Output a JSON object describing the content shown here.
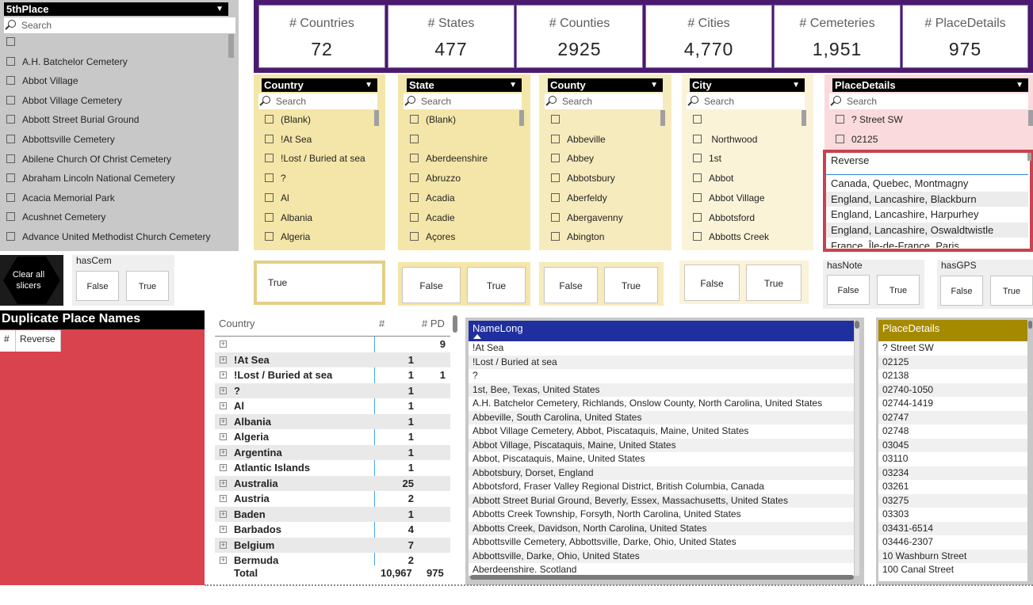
{
  "fifth_place": {
    "title": "5thPlace",
    "search_placeholder": "Search",
    "items": [
      "",
      "A.H. Batchelor Cemetery",
      "Abbot Village",
      "Abbot Village Cemetery",
      "Abbott Street Burial Ground",
      "Abbottsville Cemetery",
      "Abilene Church Of Christ Cemetery",
      "Abraham Lincoln National Cemetery",
      "Acacia Memorial Park",
      "Acushnet Cemetery",
      "Advance United Methodist Church Cemetery"
    ]
  },
  "kpis": [
    {
      "label": "# Countries",
      "value": "72"
    },
    {
      "label": "# States",
      "value": "477"
    },
    {
      "label": "# Counties",
      "value": "2925"
    },
    {
      "label": "# Cities",
      "value": "4,770"
    },
    {
      "label": "# Cemeteries",
      "value": "1,951"
    },
    {
      "label": "# PlaceDetails",
      "value": "975"
    }
  ],
  "slicers": {
    "country": {
      "title": "Country",
      "search": "Search",
      "items": [
        "(Blank)",
        "!At Sea",
        "!Lost / Buried at sea",
        "?",
        "Al",
        "Albania",
        "Algeria"
      ]
    },
    "state": {
      "title": "State",
      "search": "Search",
      "items": [
        "(Blank)",
        "",
        "Aberdeenshire",
        "Abruzzo",
        "Acadia",
        "Acadie",
        "Açores"
      ]
    },
    "county": {
      "title": "County",
      "search": "Search",
      "items": [
        "",
        "Abbeville",
        "Abbey",
        "Abbotsbury",
        "Aberfeldy",
        "Abergavenny",
        "Abington"
      ]
    },
    "city": {
      "title": "City",
      "search": "Search",
      "items": [
        "",
        " Northwood",
        "1st",
        "Abbot",
        "Abbot Village",
        "Abbotsford",
        "Abbotts Creek"
      ]
    },
    "placedetails": {
      "title": "PlaceDetails",
      "search": "Search",
      "items": [
        "? Street SW",
        "02125"
      ]
    }
  },
  "reverse_list": {
    "header": "Reverse",
    "items": [
      "Canada, Quebec, Montmagny",
      "England, Lancashire, Blackburn",
      "England, Lancashire, Harpurhey",
      "England, Lancashire, Oswaldtwistle",
      "France, Île-de-France, Paris"
    ]
  },
  "clear_all": {
    "label": "Clear all slicers"
  },
  "hascem": {
    "title": "hasCem",
    "false": "False",
    "true": "True"
  },
  "hasnote": {
    "title": "hasNote",
    "false": "False",
    "true": "True"
  },
  "hasgps": {
    "title": "hasGPS",
    "false": "False",
    "true": "True"
  },
  "toggles": {
    "country": {
      "true": "True"
    },
    "state": {
      "false": "False",
      "true": "True"
    },
    "county": {
      "false": "False",
      "true": "True"
    },
    "city": {
      "false": "False",
      "true": "True"
    }
  },
  "duplicates": {
    "title": "Duplicate Place Names",
    "col1": "#",
    "col2": "Reverse"
  },
  "matrix": {
    "headers": {
      "country": "Country",
      "count": "#",
      "pd": "# PD"
    },
    "rows": [
      {
        "name": "",
        "count": "",
        "pd": "9"
      },
      {
        "name": "!At Sea",
        "count": "1",
        "pd": ""
      },
      {
        "name": "!Lost / Buried at sea",
        "count": "1",
        "pd": "1"
      },
      {
        "name": "?",
        "count": "1",
        "pd": ""
      },
      {
        "name": "Al",
        "count": "1",
        "pd": ""
      },
      {
        "name": "Albania",
        "count": "1",
        "pd": ""
      },
      {
        "name": "Algeria",
        "count": "1",
        "pd": ""
      },
      {
        "name": "Argentina",
        "count": "1",
        "pd": ""
      },
      {
        "name": "Atlantic Islands",
        "count": "1",
        "pd": ""
      },
      {
        "name": "Australia",
        "count": "25",
        "pd": ""
      },
      {
        "name": "Austria",
        "count": "2",
        "pd": ""
      },
      {
        "name": "Baden",
        "count": "1",
        "pd": ""
      },
      {
        "name": "Barbados",
        "count": "4",
        "pd": ""
      },
      {
        "name": "Belgium",
        "count": "7",
        "pd": ""
      },
      {
        "name": "Bermuda",
        "count": "2",
        "pd": ""
      }
    ],
    "total": {
      "label": "Total",
      "count": "10,967",
      "pd": "975"
    }
  },
  "namelong": {
    "header": "NameLong",
    "rows": [
      "!At Sea",
      "!Lost / Buried at sea",
      "?",
      "1st, Bee, Texas, United States",
      "A.H. Batchelor Cemetery, Richlands, Onslow County, North Carolina, United States",
      "Abbeville, South Carolina, United States",
      "Abbot Village Cemetery, Abbot, Piscataquis, Maine, United States",
      "Abbot Village, Piscataquis, Maine, United States",
      "Abbot, Piscataquis, Maine, United States",
      "Abbotsbury, Dorset, England",
      "Abbotsford, Fraser Valley Regional District, British Columbia, Canada",
      "Abbott Street Burial Ground, Beverly, Essex, Massachusetts, United States",
      "Abbotts Creek Township, Forsyth, North Carolina, United States",
      "Abbotts Creek, Davidson, North Carolina, United States",
      "Abbottsville Cemetery, Abbottsville, Darke, Ohio, United States",
      "Abbottsville, Darke, Ohio, United States",
      "Aberdeenshire, Scotland"
    ]
  },
  "placedetails_table": {
    "header": "PlaceDetails",
    "rows": [
      "? Street SW",
      "02125",
      "02138",
      "02740-1050",
      "02744-1419",
      "02747",
      "02748",
      "03045",
      "03110",
      "03234",
      "03261",
      "03275",
      "03303",
      "03431-6514",
      "03446-2307",
      "10 Washburn Street",
      "100 Canal Street"
    ]
  },
  "colors": {
    "purple": "#4b1a6e",
    "yellow": "#f4e6a8",
    "cream": "#faf3d8",
    "pink": "#fadadd",
    "red_panel": "#d9434e",
    "blue_header": "#1f2f9e",
    "gold_header": "#a58a00"
  }
}
